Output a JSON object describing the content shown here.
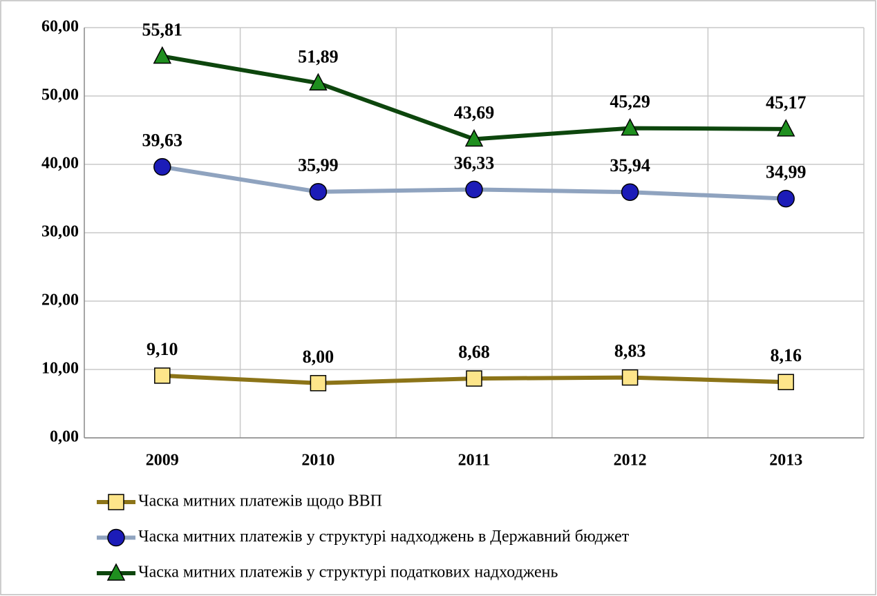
{
  "chart_data": {
    "type": "line",
    "categories": [
      "2009",
      "2010",
      "2011",
      "2012",
      "2013"
    ],
    "ylim": [
      0,
      60
    ],
    "yticks": [
      {
        "value": 0,
        "label": "0,00"
      },
      {
        "value": 10,
        "label": "10,00"
      },
      {
        "value": 20,
        "label": "20,00"
      },
      {
        "value": 30,
        "label": "30,00"
      },
      {
        "value": 40,
        "label": "40,00"
      },
      {
        "value": 50,
        "label": "50,00"
      },
      {
        "value": 60,
        "label": "60,00"
      }
    ],
    "grid": true,
    "legend": "bottom",
    "series": [
      {
        "name": "Часка митних платежів щодо ВВП",
        "color": "#8c7418",
        "marker": "square",
        "marker_color": "#fde58a",
        "values": [
          9.1,
          8.0,
          8.68,
          8.83,
          8.16
        ],
        "value_labels": [
          "9,10",
          "8,00",
          "8,68",
          "8,83",
          "8,16"
        ]
      },
      {
        "name": "Часка митних платежів у структурі надходжень в Державний бюджет",
        "color": "#8fa3bf",
        "marker": "circle",
        "marker_color": "#1c1cb8",
        "values": [
          39.63,
          35.99,
          36.33,
          35.94,
          34.99
        ],
        "value_labels": [
          "39,63",
          "35,99",
          "36,33",
          "35,94",
          "34,99"
        ]
      },
      {
        "name": "Часка митних платежів у структурі податкових надходжень",
        "color": "#0d460d",
        "marker": "triangle",
        "marker_color": "#1f8f1f",
        "values": [
          55.81,
          51.89,
          43.69,
          45.29,
          45.17
        ],
        "value_labels": [
          "55,81",
          "51,89",
          "43,69",
          "45,29",
          "45,17"
        ]
      }
    ]
  }
}
